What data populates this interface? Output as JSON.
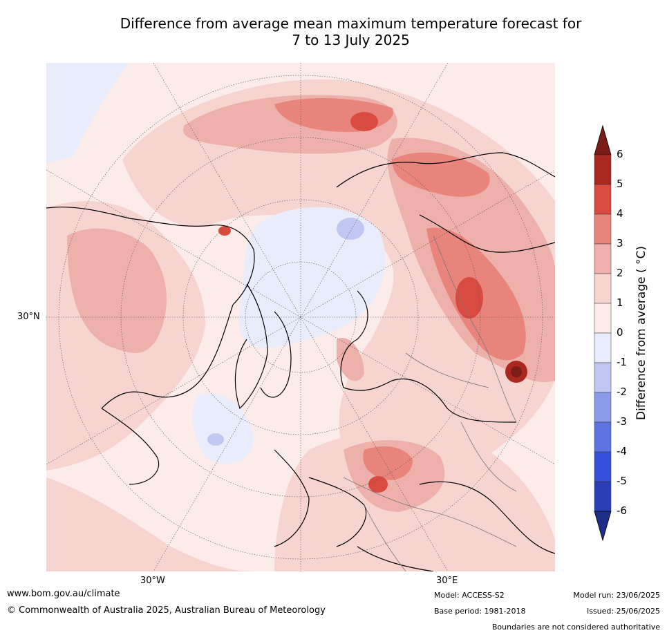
{
  "title_line1": "Difference from average mean maximum temperature forecast for",
  "title_line2": "7 to 13 July 2025",
  "map": {
    "lat_label": "30°N",
    "lon_labels": [
      "30°W",
      "30°E"
    ]
  },
  "colorbar": {
    "label": "Difference from average ( °C)",
    "ticks": [
      "6",
      "5",
      "4",
      "3",
      "2",
      "1",
      "0",
      "-1",
      "-2",
      "-3",
      "-4",
      "-5",
      "-6"
    ],
    "colors": [
      "#7b1c17",
      "#a92921",
      "#d94b40",
      "#e8847c",
      "#eeb0aa",
      "#f6d5d1",
      "#fbece9",
      "#e8ecfb",
      "#c0c7f2",
      "#8b9ae9",
      "#5c73e0",
      "#3550d9",
      "#2a3db4",
      "#1f2e86"
    ]
  },
  "footer": {
    "website": "www.bom.gov.au/climate",
    "copyright": "© Commonwealth of Australia 2025, Australian Bureau of Meteorology",
    "model": "Model: ACCESS-S2",
    "base_period": "Base period: 1981-2018",
    "model_run": "Model run: 23/06/2025",
    "issued": "Issued: 25/06/2025",
    "disclaimer": "Boundaries are not considered authoritative"
  }
}
